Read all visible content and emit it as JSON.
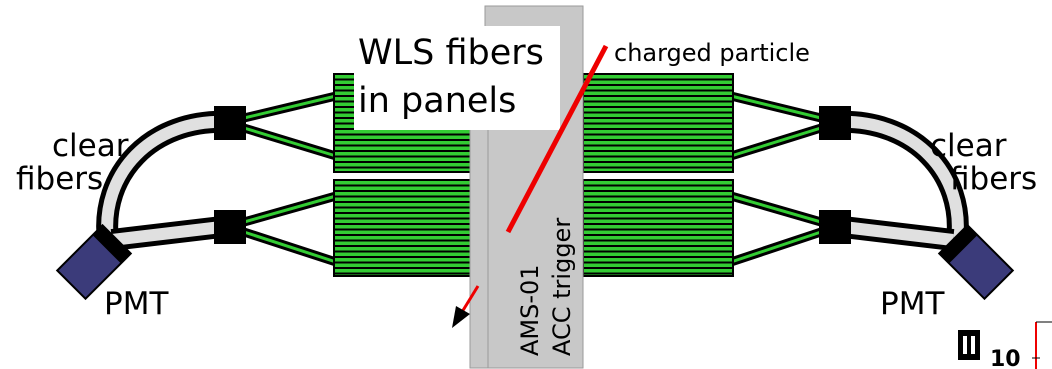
{
  "labels": {
    "wls_line1": "WLS fibers",
    "wls_line2": "in panels",
    "charged_particle": "charged particle",
    "clear_left_line1": "clear",
    "clear_left_line2": "fibers",
    "clear_right_line1": "clear",
    "clear_right_line2": "fibers",
    "pmt_left": "PMT",
    "pmt_right": "PMT",
    "ams_line1": "AMS-01",
    "ams_line2": "ACC trigger",
    "corner_number": "10"
  },
  "colors": {
    "fiber_green": "#33cc33",
    "fiber_outline": "#000000",
    "pmt_blue": "#3b3b7a",
    "support_gray": "#c8c8c8",
    "particle_red": "#ee0000",
    "clear_fiber_fill": "#e0e0e0"
  }
}
